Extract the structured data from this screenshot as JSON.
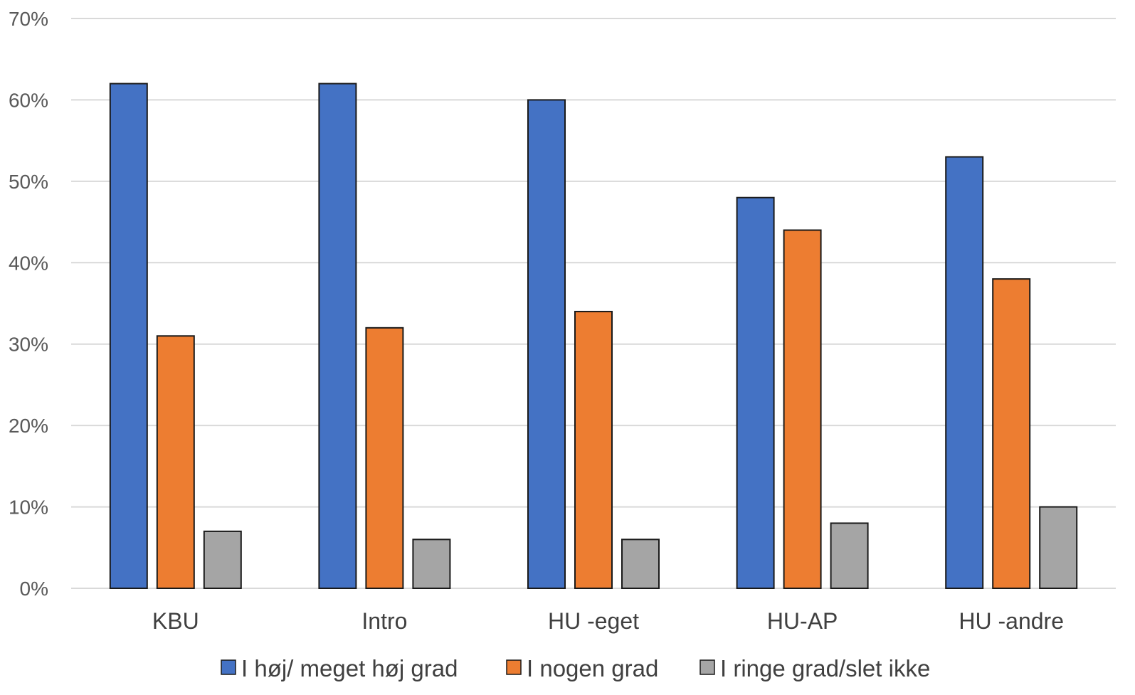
{
  "chart_data": {
    "type": "bar",
    "categories": [
      "KBU",
      "Intro",
      "HU -eget",
      "HU-AP",
      "HU -andre"
    ],
    "series": [
      {
        "name": "I høj/ meget høj grad",
        "color": "#4472c4",
        "values": [
          62,
          62,
          60,
          48,
          53
        ]
      },
      {
        "name": "I nogen grad",
        "color": "#ed7d31",
        "values": [
          31,
          32,
          34,
          44,
          38
        ]
      },
      {
        "name": "I ringe grad/slet ikke",
        "color": "#a5a5a5",
        "values": [
          7,
          6,
          6,
          8,
          10
        ]
      }
    ],
    "ylim": [
      0,
      70
    ],
    "yticks": [
      0,
      10,
      20,
      30,
      40,
      50,
      60,
      70
    ],
    "ytick_labels": [
      "0%",
      "10%",
      "20%",
      "30%",
      "40%",
      "50%",
      "60%",
      "70%"
    ],
    "grid": true,
    "legend_position": "bottom"
  }
}
